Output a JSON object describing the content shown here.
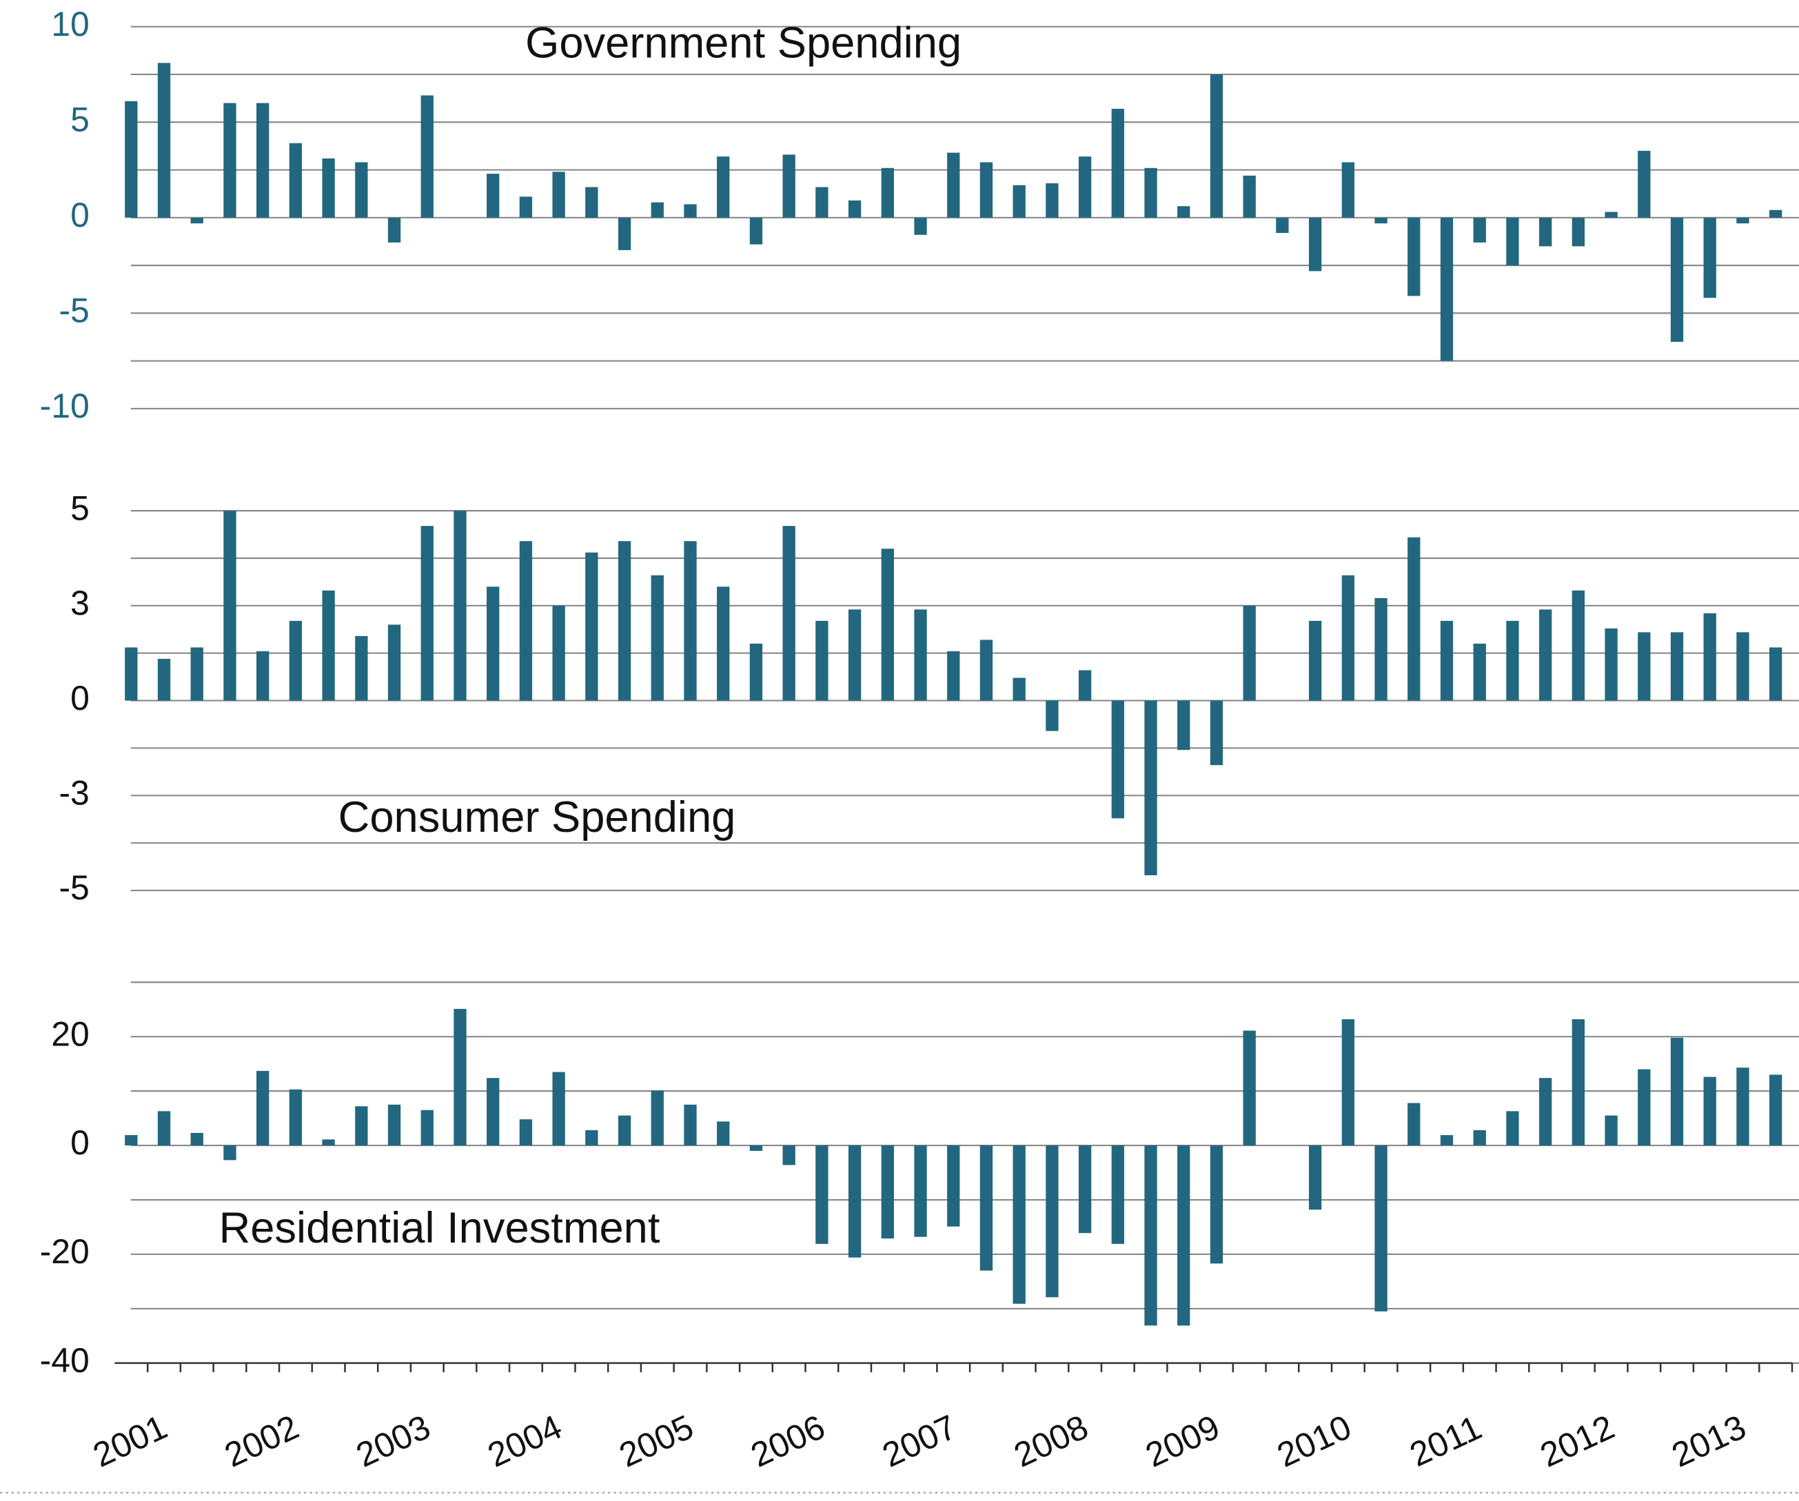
{
  "chart_data": [
    {
      "type": "bar",
      "title": "Government Spending",
      "color": "#22677f",
      "tick_color": "#22677f",
      "values": [
        6.1,
        8.1,
        -0.3,
        6.0,
        6.0,
        3.9,
        3.1,
        2.9,
        -1.3,
        6.4,
        0,
        2.3,
        1.1,
        2.4,
        1.6,
        -1.7,
        0.8,
        0.7,
        3.2,
        -1.4,
        3.3,
        1.6,
        0.9,
        2.6,
        -0.9,
        3.4,
        2.9,
        1.7,
        1.8,
        3.2,
        5.7,
        2.6,
        0.6,
        7.5,
        2.2,
        -0.8,
        -2.8,
        2.9,
        -0.3,
        -4.1,
        -7.5,
        -1.3,
        -2.5,
        -1.5,
        -1.5,
        0.3,
        3.5,
        -6.5,
        -4.2,
        -0.3,
        0.4
      ],
      "ylim": [
        -10,
        10
      ],
      "yticks": [
        10,
        5,
        0,
        -5,
        -10
      ],
      "gridlines": [
        10,
        7.5,
        5,
        2.5,
        0,
        -2.5,
        -5,
        -7.5,
        -10
      ]
    },
    {
      "type": "bar",
      "title": "Consumer Spending",
      "color": "#22677f",
      "tick_color": "#111111",
      "values": [
        1.4,
        1.1,
        1.4,
        5.0,
        1.3,
        2.1,
        2.9,
        1.7,
        2.0,
        4.6,
        5.0,
        3.0,
        4.2,
        2.5,
        3.9,
        4.2,
        3.3,
        4.2,
        3.0,
        1.5,
        4.6,
        2.1,
        2.4,
        4.0,
        2.4,
        1.3,
        1.6,
        0.6,
        -0.8,
        0.8,
        -3.1,
        -4.6,
        -1.3,
        -1.7,
        2.5,
        0,
        2.1,
        3.3,
        2.7,
        4.3,
        2.1,
        1.5,
        2.1,
        2.4,
        2.9,
        1.9,
        1.8,
        1.8,
        2.3,
        1.8,
        1.4
      ],
      "ylim": [
        -5,
        5
      ],
      "yticks": [
        5,
        {
          "value": 2.5,
          "label": "3"
        },
        0,
        {
          "value": -2.5,
          "label": "-3"
        },
        -5
      ],
      "gridlines": [
        5,
        3.75,
        2.5,
        1.25,
        0,
        -1.25,
        -2.5,
        -3.75,
        -5
      ]
    },
    {
      "type": "bar",
      "title": "Residential Investment",
      "color": "#22677f",
      "tick_color": "#111111",
      "values": [
        1.9,
        6.3,
        2.3,
        -2.7,
        13.7,
        10.3,
        1.1,
        7.2,
        7.5,
        6.5,
        25.1,
        12.4,
        4.8,
        13.5,
        2.8,
        5.5,
        10.1,
        7.5,
        4.4,
        -1.0,
        -3.6,
        -18.1,
        -20.6,
        -17.1,
        -16.8,
        -14.9,
        -23.0,
        -29.1,
        -27.9,
        -16.1,
        -18.1,
        -33.1,
        -33.1,
        -21.7,
        21.1,
        0,
        -11.8,
        23.2,
        -30.5,
        7.8,
        1.9,
        2.8,
        6.3,
        12.4,
        23.2,
        5.5,
        14.0,
        19.8,
        12.6,
        14.3,
        13.0
      ],
      "ylim": [
        -40,
        30
      ],
      "yticks": [
        20,
        0,
        -20,
        -40
      ],
      "gridlines": [
        30,
        20,
        10,
        0,
        -10,
        -20,
        -30,
        -40
      ],
      "categories": [
        "2001",
        null,
        null,
        null,
        "2002",
        null,
        null,
        null,
        "2003",
        null,
        null,
        null,
        "2004",
        null,
        null,
        null,
        "2005",
        null,
        null,
        null,
        "2006",
        null,
        null,
        null,
        "2007",
        null,
        null,
        null,
        "2008",
        null,
        null,
        null,
        "2009",
        null,
        null,
        null,
        "2010",
        null,
        null,
        null,
        "2011",
        null,
        null,
        null,
        "2012",
        null,
        null,
        null,
        "2013",
        null,
        null
      ]
    }
  ]
}
